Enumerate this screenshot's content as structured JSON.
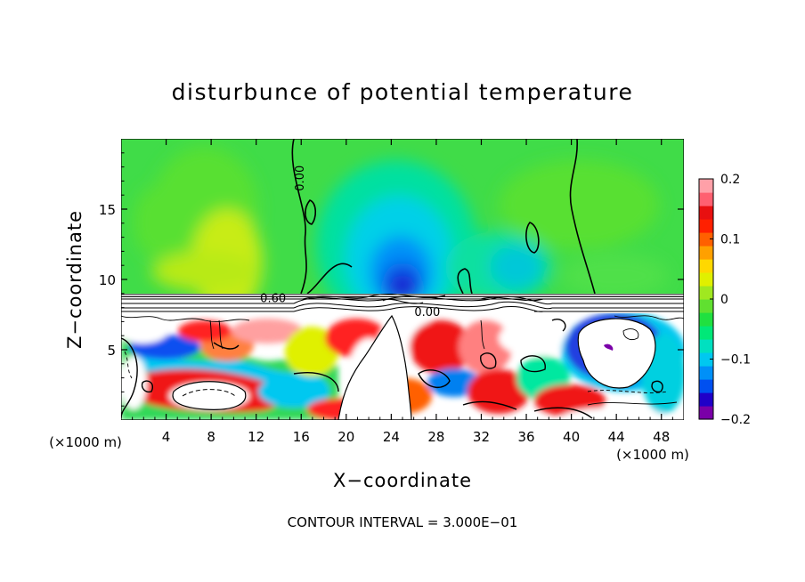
{
  "chart_data": {
    "type": "heatmap",
    "title": "disturbunce of potential temperature",
    "xlabel": "X−coordinate",
    "ylabel": "Z−coordinate",
    "x_unit": "(×1000 m)",
    "y_unit": "(×1000 m)",
    "xlim": [
      0,
      50
    ],
    "ylim": [
      0,
      20
    ],
    "x_ticks": [
      4,
      8,
      12,
      16,
      20,
      24,
      28,
      32,
      36,
      40,
      44,
      48
    ],
    "y_ticks": [
      5,
      10,
      15
    ],
    "colorbar": {
      "min": -0.2,
      "max": 0.2,
      "ticks": [
        0.2,
        0.1,
        0,
        -0.1,
        -0.2
      ],
      "tick_labels": [
        "0.2",
        "0.1",
        "0",
        "−0.1",
        "−0.2"
      ],
      "colors": [
        "#7a00a8",
        "#2000c8",
        "#0050f0",
        "#0090f8",
        "#00c8f0",
        "#00e0c0",
        "#00e878",
        "#20e040",
        "#60e030",
        "#a0e820",
        "#e0f000",
        "#ffd800",
        "#ffa000",
        "#ff6000",
        "#ff2000",
        "#e81010",
        "#ff6070",
        "#ffa0a8"
      ]
    },
    "contour_labels": [
      {
        "text": "0.00",
        "x": 16.2,
        "y": 17.2,
        "rotate": -90
      },
      {
        "text": "0.60",
        "x": 13.5,
        "y": 8.4,
        "rotate": 0
      },
      {
        "text": "0.00",
        "x": 27.2,
        "y": 7.4,
        "rotate": 0
      }
    ],
    "contour_interval": "CONTOUR INTERVAL = 3.000E−01"
  }
}
